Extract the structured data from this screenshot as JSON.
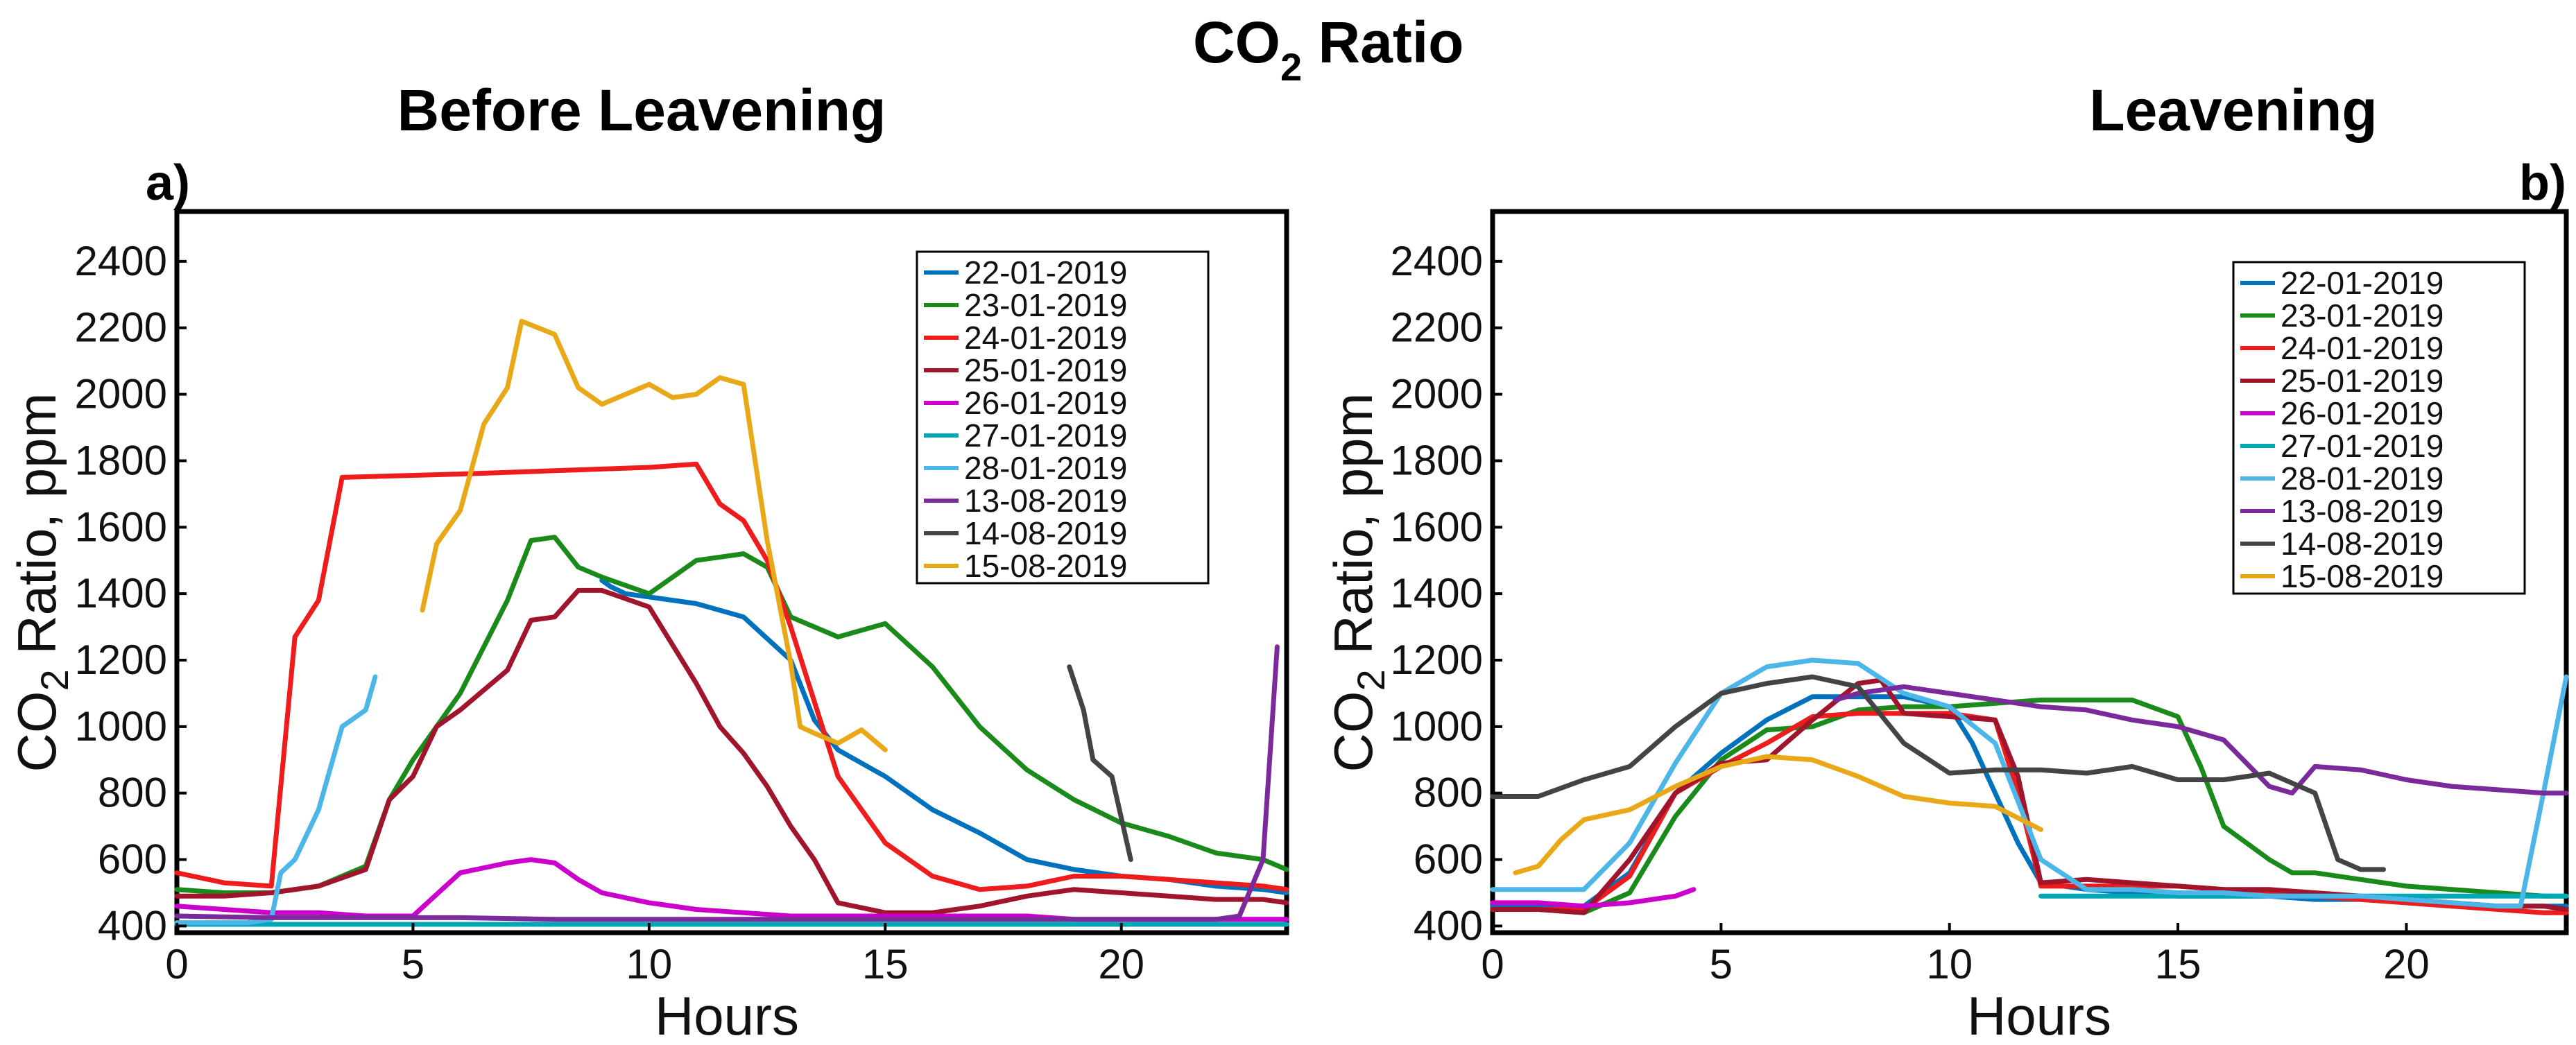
{
  "figure": {
    "title_main": "CO",
    "title_sub": "2",
    "title_rest": " Ratio"
  },
  "panels": [
    {
      "tag": "a)",
      "subtitle": "Before Leavening"
    },
    {
      "tag": "b)",
      "subtitle": "Leavening"
    }
  ],
  "chart_data": [
    {
      "type": "line",
      "title": "Before Leavening",
      "xlabel": "Hours",
      "ylabel_main": "CO",
      "ylabel_sub": "2",
      "ylabel_rest": " Ratio, ppm",
      "xlim": [
        0,
        23.5
      ],
      "ylim": [
        380,
        2550
      ],
      "xticks": [
        0,
        5,
        10,
        15,
        20
      ],
      "yticks": [
        400,
        600,
        800,
        1000,
        1200,
        1400,
        1600,
        1800,
        2000,
        2200,
        2400
      ],
      "series": [
        {
          "name": "22-01-2019",
          "color": "#0072bd",
          "x": [
            9,
            9.2,
            9.5,
            10,
            11,
            12,
            13,
            13.5,
            14,
            15,
            16,
            17,
            18,
            19,
            20,
            21,
            22,
            23,
            23.5
          ],
          "y": [
            1440,
            1420,
            1400,
            1390,
            1370,
            1330,
            1200,
            1020,
            930,
            850,
            750,
            680,
            600,
            570,
            550,
            540,
            520,
            510,
            500
          ]
        },
        {
          "name": "23-01-2019",
          "color": "#1a8a1a",
          "x": [
            0,
            1,
            2,
            3,
            4,
            4.5,
            5,
            6,
            7,
            7.5,
            8,
            8.5,
            9,
            10,
            11,
            12,
            12.5,
            13,
            14,
            15,
            16,
            17,
            18,
            19,
            20,
            21,
            22,
            23,
            23.5
          ],
          "y": [
            510,
            500,
            500,
            520,
            580,
            780,
            900,
            1100,
            1380,
            1560,
            1570,
            1480,
            1450,
            1400,
            1500,
            1520,
            1480,
            1330,
            1270,
            1310,
            1180,
            1000,
            870,
            780,
            710,
            670,
            620,
            600,
            570
          ]
        },
        {
          "name": "24-01-2019",
          "color": "#ee1c1c",
          "x": [
            0,
            1,
            2,
            2.5,
            3,
            3.5,
            6,
            8,
            10,
            11,
            11.5,
            12,
            12.5,
            13,
            14,
            15,
            16,
            17,
            18,
            19,
            20,
            21,
            22,
            23,
            23.5
          ],
          "y": [
            560,
            530,
            520,
            1270,
            1380,
            1750,
            1760,
            1770,
            1780,
            1790,
            1670,
            1620,
            1500,
            1300,
            850,
            650,
            550,
            510,
            520,
            550,
            550,
            540,
            530,
            520,
            510
          ]
        },
        {
          "name": "25-01-2019",
          "color": "#a0142c",
          "x": [
            0,
            1,
            2,
            3,
            4,
            4.5,
            5,
            5.5,
            6,
            7,
            7.5,
            8,
            8.5,
            9,
            10,
            11,
            11.5,
            12,
            12.5,
            13,
            13.5,
            14,
            15,
            16,
            17,
            18,
            19,
            20,
            21,
            22,
            23,
            23.5
          ],
          "y": [
            490,
            490,
            500,
            520,
            570,
            780,
            850,
            1000,
            1050,
            1170,
            1320,
            1330,
            1410,
            1410,
            1360,
            1130,
            1000,
            920,
            820,
            700,
            600,
            470,
            440,
            440,
            460,
            490,
            510,
            500,
            490,
            480,
            480,
            470
          ]
        },
        {
          "name": "26-01-2019",
          "color": "#cc00cc",
          "x": [
            0,
            1,
            2,
            3,
            4,
            5,
            6,
            7,
            7.5,
            8,
            8.5,
            9,
            10,
            11,
            12,
            13,
            14,
            15,
            16,
            17,
            18,
            19,
            20,
            21,
            22,
            23,
            23.5
          ],
          "y": [
            460,
            450,
            440,
            440,
            430,
            430,
            560,
            590,
            600,
            590,
            540,
            500,
            470,
            450,
            440,
            430,
            430,
            430,
            430,
            430,
            430,
            420,
            420,
            420,
            420,
            420,
            420
          ]
        },
        {
          "name": "27-01-2019",
          "color": "#00a8b5",
          "x": [
            0,
            23.5
          ],
          "y": [
            405,
            405
          ]
        },
        {
          "name": "28-01-2019",
          "color": "#4db6e8",
          "x": [
            0,
            1,
            1.5,
            2,
            2.2,
            2.5,
            3,
            3.5,
            4,
            4.2
          ],
          "y": [
            410,
            410,
            410,
            420,
            560,
            600,
            750,
            1000,
            1050,
            1150
          ]
        },
        {
          "name": "13-08-2019",
          "color": "#7a2a9a",
          "x": [
            0,
            2,
            4,
            6,
            8,
            10,
            12,
            14,
            16,
            18,
            20,
            22,
            22.5,
            23,
            23.3
          ],
          "y": [
            430,
            425,
            425,
            425,
            420,
            420,
            420,
            420,
            420,
            420,
            420,
            420,
            430,
            600,
            1240
          ]
        },
        {
          "name": "14-08-2019",
          "color": "#444444",
          "x": [
            18.9,
            19.2,
            19.4,
            19.8,
            20.2
          ],
          "y": [
            1180,
            1050,
            900,
            850,
            600
          ]
        },
        {
          "name": "15-08-2019",
          "color": "#e8a817",
          "x": [
            5.2,
            5.5,
            6,
            6.5,
            7,
            7.3,
            8,
            8.5,
            9,
            10,
            10.5,
            11,
            11.5,
            12,
            12.5,
            13,
            13.2,
            13.5,
            14,
            14.5,
            15
          ],
          "y": [
            1350,
            1550,
            1650,
            1910,
            2020,
            2220,
            2180,
            2020,
            1970,
            2030,
            1990,
            2000,
            2050,
            2030,
            1560,
            1190,
            1000,
            980,
            950,
            990,
            930
          ]
        }
      ]
    },
    {
      "type": "line",
      "title": "Leavening",
      "xlabel": "Hours",
      "ylabel_main": "CO",
      "ylabel_sub": "2",
      "ylabel_rest": " Ratio, ppm",
      "xlim": [
        0,
        23.5
      ],
      "ylim": [
        380,
        2550
      ],
      "xticks": [
        0,
        5,
        10,
        15,
        20
      ],
      "yticks": [
        400,
        600,
        800,
        1000,
        1200,
        1400,
        1600,
        1800,
        2000,
        2200,
        2400
      ],
      "series": [
        {
          "name": "22-01-2019",
          "color": "#0072bd",
          "x": [
            0,
            1,
            2,
            3,
            4,
            5,
            6,
            7,
            8,
            9,
            10,
            10.5,
            11,
            11.5,
            12,
            13,
            14,
            15,
            16,
            17,
            18,
            19,
            20,
            21,
            22,
            23,
            23.5
          ],
          "y": [
            460,
            460,
            460,
            560,
            800,
            920,
            1020,
            1090,
            1090,
            1090,
            1060,
            950,
            800,
            650,
            530,
            510,
            500,
            490,
            490,
            490,
            480,
            480,
            470,
            460,
            460,
            460,
            460
          ]
        },
        {
          "name": "23-01-2019",
          "color": "#1a8a1a",
          "x": [
            0,
            1,
            2,
            3,
            4,
            5,
            6,
            7,
            8,
            9,
            10,
            11,
            12,
            13,
            14,
            15,
            15.5,
            16,
            17,
            17.5,
            18,
            19,
            20,
            21,
            22,
            23,
            23.5
          ],
          "y": [
            450,
            450,
            440,
            500,
            730,
            900,
            990,
            1000,
            1050,
            1060,
            1060,
            1070,
            1080,
            1080,
            1080,
            1030,
            880,
            700,
            600,
            560,
            560,
            540,
            520,
            510,
            500,
            490,
            490
          ]
        },
        {
          "name": "24-01-2019",
          "color": "#ee1c1c",
          "x": [
            0,
            1,
            2,
            3,
            4,
            5,
            6,
            7,
            8,
            9,
            10,
            11,
            11.5,
            12,
            13,
            14,
            15,
            16,
            17,
            18,
            19,
            20,
            21,
            22,
            23,
            23.5
          ],
          "y": [
            450,
            450,
            450,
            550,
            800,
            880,
            950,
            1030,
            1040,
            1040,
            1040,
            1020,
            800,
            520,
            520,
            520,
            520,
            510,
            500,
            490,
            480,
            470,
            460,
            450,
            440,
            440
          ]
        },
        {
          "name": "25-01-2019",
          "color": "#a0142c",
          "x": [
            0,
            1,
            2,
            3,
            4,
            5,
            6,
            7,
            8,
            8.5,
            9,
            10,
            11,
            11.5,
            12,
            13,
            14,
            15,
            16,
            17,
            18,
            19,
            20,
            21,
            22,
            23,
            23.5
          ],
          "y": [
            450,
            450,
            440,
            600,
            800,
            890,
            900,
            1020,
            1130,
            1140,
            1040,
            1030,
            1020,
            850,
            530,
            540,
            530,
            520,
            510,
            510,
            500,
            490,
            480,
            470,
            460,
            460,
            450
          ]
        },
        {
          "name": "26-01-2019",
          "color": "#cc00cc",
          "x": [
            0,
            1,
            2,
            3,
            4,
            4.4
          ],
          "y": [
            470,
            470,
            460,
            470,
            490,
            510
          ]
        },
        {
          "name": "27-01-2019",
          "color": "#00a8b5",
          "x": [
            12,
            23.5
          ],
          "y": [
            490,
            490
          ]
        },
        {
          "name": "28-01-2019",
          "color": "#4db6e8",
          "x": [
            0,
            1,
            2,
            3,
            4,
            5,
            6,
            7,
            8,
            9,
            10,
            11,
            12,
            13,
            14,
            15,
            16,
            17,
            18,
            19,
            20,
            21,
            22,
            22.5,
            23,
            23.5
          ],
          "y": [
            510,
            510,
            510,
            650,
            890,
            1100,
            1180,
            1200,
            1190,
            1100,
            1060,
            950,
            600,
            510,
            510,
            500,
            500,
            490,
            490,
            490,
            480,
            470,
            460,
            460,
            800,
            1150
          ]
        },
        {
          "name": "13-08-2019",
          "color": "#7a2a9a",
          "x": [
            7.5,
            8,
            9,
            10,
            11,
            12,
            13,
            14,
            15,
            16,
            17,
            17.5,
            18,
            19,
            20,
            21,
            22,
            23,
            23.5
          ],
          "y": [
            1080,
            1100,
            1120,
            1100,
            1080,
            1060,
            1050,
            1020,
            1000,
            960,
            820,
            800,
            880,
            870,
            840,
            820,
            810,
            800,
            800
          ]
        },
        {
          "name": "14-08-2019",
          "color": "#444444",
          "x": [
            0,
            1,
            2,
            3,
            4,
            5,
            6,
            7,
            8,
            9,
            10,
            11,
            12,
            13,
            14,
            15,
            16,
            17,
            18,
            18.5,
            19,
            19.5
          ],
          "y": [
            790,
            790,
            840,
            880,
            1000,
            1100,
            1130,
            1150,
            1120,
            950,
            860,
            870,
            870,
            860,
            880,
            840,
            840,
            860,
            800,
            600,
            570,
            570
          ]
        },
        {
          "name": "15-08-2019",
          "color": "#e8a817",
          "x": [
            0.5,
            1,
            1.5,
            2,
            3,
            4,
            5,
            6,
            7,
            8,
            9,
            10,
            11,
            12
          ],
          "y": [
            560,
            580,
            660,
            720,
            750,
            820,
            880,
            910,
            900,
            850,
            790,
            770,
            760,
            690
          ]
        }
      ]
    }
  ]
}
